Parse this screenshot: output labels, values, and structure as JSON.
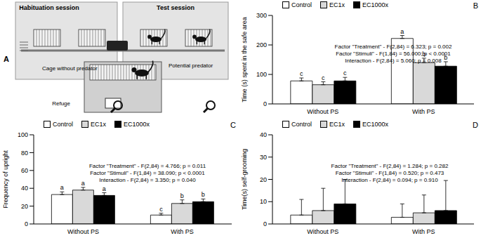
{
  "diagram": {
    "panel_label": "A",
    "sessions": [
      "Habituation session",
      "Test session"
    ],
    "labels": {
      "cage": "Cage without predator",
      "predator": "Potential predator",
      "refuge": "Refuge"
    }
  },
  "chart_data": [
    {
      "type": "bar",
      "panel_label": "B",
      "y_label": "Time (s) spent in the safe area",
      "categories": [
        "Without PS",
        "With PS"
      ],
      "ylim": [
        0,
        300
      ],
      "yticks": [
        0,
        100,
        200,
        300
      ],
      "annotations": [
        "Factor \"Treatment\" - F(2,84) = 6.323; p = 0.002",
        "Factor \"Stimuli\" - F(1,84) = 56.000; p < 0.0001",
        "Interaction - F(2,84) = 5.060; p = 0.008"
      ],
      "series": [
        {
          "name": "Control",
          "color": "#ffffff",
          "values": [
            78,
            222
          ],
          "errors": [
            10,
            10
          ],
          "letters": [
            "c",
            "a"
          ]
        },
        {
          "name": "EC1x",
          "color": "#d9d9d9",
          "values": [
            65,
            140
          ],
          "errors": [
            10,
            15
          ],
          "letters": [
            "c",
            "b"
          ]
        },
        {
          "name": "EC1000x",
          "color": "#000000",
          "values": [
            78,
            128
          ],
          "errors": [
            12,
            15
          ],
          "letters": [
            "c",
            "b"
          ]
        }
      ]
    },
    {
      "type": "bar",
      "panel_label": "C",
      "y_label": "Frequency of upright",
      "categories": [
        "Without PS",
        "With PS"
      ],
      "ylim": [
        0,
        100
      ],
      "yticks": [
        0,
        20,
        40,
        60,
        80,
        100
      ],
      "annotations": [
        "Factor \"Treatment\" - F(2,84) = 4.766; p = 0.011",
        "Factor \"Stimuli\" - F(1,84) = 38.090; p < 0.0001",
        "Interaction - F(2,84) = 3.350; p = 0.040"
      ],
      "series": [
        {
          "name": "Control",
          "color": "#ffffff",
          "values": [
            33,
            10
          ],
          "errors": [
            3,
            2
          ],
          "letters": [
            "a",
            "c"
          ]
        },
        {
          "name": "EC1x",
          "color": "#d9d9d9",
          "values": [
            38,
            23
          ],
          "errors": [
            3,
            4
          ],
          "letters": [
            "a",
            "b"
          ]
        },
        {
          "name": "EC1000x",
          "color": "#000000",
          "values": [
            32,
            25
          ],
          "errors": [
            3,
            3
          ],
          "letters": [
            "a",
            "b"
          ]
        }
      ]
    },
    {
      "type": "bar",
      "panel_label": "D",
      "y_label": "Time(s) self-grooming",
      "categories": [
        "Without PS",
        "With PS"
      ],
      "ylim": [
        0,
        40
      ],
      "yticks": [
        0,
        10,
        20,
        30,
        40
      ],
      "annotations": [
        "Factor \"Treatment\" - F(2,84) = 1.284; p = 0.282",
        "Factor \"Stimuli\" - F(1,84) = 0.520; p = 0.473",
        "Interaction - F(2,84) = 0.094; p = 0.910"
      ],
      "series": [
        {
          "name": "Control",
          "color": "#ffffff",
          "values": [
            4,
            3
          ],
          "errors": [
            7,
            6
          ]
        },
        {
          "name": "EC1x",
          "color": "#d9d9d9",
          "values": [
            6,
            5
          ],
          "errors": [
            10,
            8
          ]
        },
        {
          "name": "EC1000x",
          "color": "#000000",
          "values": [
            9,
            6
          ],
          "errors": [
            11,
            13.5
          ]
        }
      ]
    }
  ]
}
